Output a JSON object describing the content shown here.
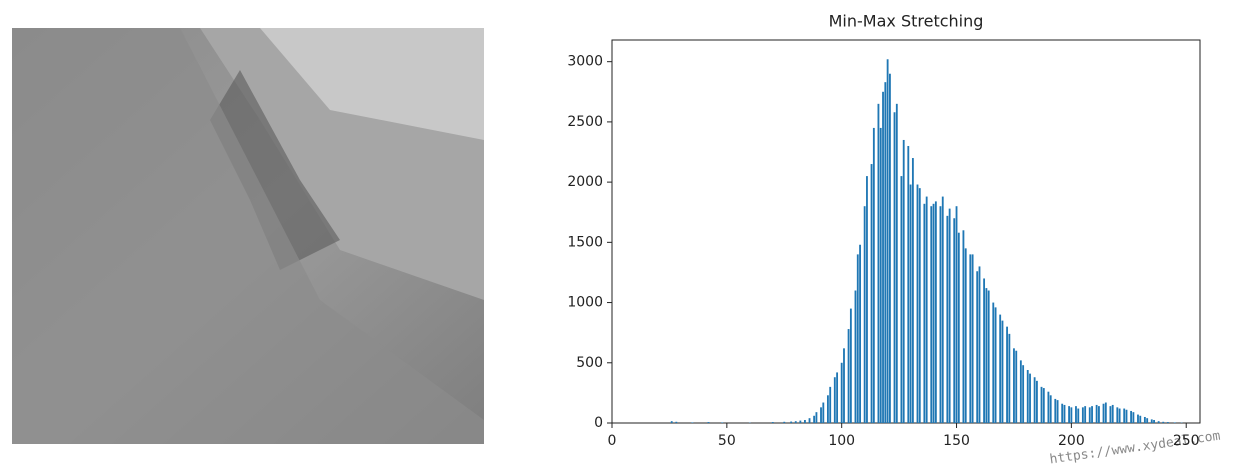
{
  "chart_data": {
    "type": "bar",
    "title": "Min-Max Stretching",
    "x": [
      26,
      28,
      35,
      42,
      48,
      60,
      70,
      75,
      78,
      80,
      82,
      84,
      86,
      88,
      89,
      91,
      92,
      94,
      95,
      97,
      98,
      100,
      101,
      103,
      104,
      106,
      107,
      108,
      110,
      111,
      113,
      114,
      116,
      117,
      118,
      119,
      120,
      121,
      123,
      124,
      126,
      127,
      129,
      130,
      131,
      133,
      134,
      136,
      137,
      139,
      140,
      141,
      143,
      144,
      146,
      147,
      149,
      150,
      151,
      153,
      154,
      156,
      157,
      159,
      160,
      162,
      163,
      164,
      166,
      167,
      169,
      170,
      172,
      173,
      175,
      176,
      178,
      179,
      181,
      182,
      184,
      185,
      187,
      188,
      190,
      191,
      193,
      194,
      196,
      197,
      199,
      200,
      202,
      203,
      205,
      206,
      208,
      209,
      211,
      212,
      214,
      215,
      217,
      218,
      220,
      221,
      223,
      224,
      226,
      227,
      229,
      230,
      232,
      233,
      235,
      236,
      238,
      240,
      242,
      245,
      248
    ],
    "values": [
      15,
      10,
      5,
      8,
      5,
      3,
      8,
      10,
      12,
      15,
      20,
      25,
      40,
      60,
      90,
      130,
      170,
      230,
      300,
      380,
      420,
      500,
      620,
      780,
      950,
      1100,
      1400,
      1480,
      1800,
      2050,
      2150,
      2450,
      2650,
      2450,
      2750,
      2830,
      3020,
      2900,
      2580,
      2650,
      2050,
      2350,
      2300,
      1980,
      2200,
      1980,
      1950,
      1820,
      1880,
      1800,
      1820,
      1840,
      1800,
      1880,
      1720,
      1780,
      1700,
      1800,
      1580,
      1600,
      1450,
      1400,
      1400,
      1260,
      1300,
      1200,
      1120,
      1100,
      1000,
      960,
      900,
      850,
      800,
      740,
      620,
      600,
      520,
      480,
      440,
      410,
      380,
      350,
      300,
      290,
      260,
      230,
      200,
      190,
      160,
      150,
      140,
      130,
      140,
      120,
      130,
      140,
      130,
      140,
      150,
      140,
      160,
      170,
      140,
      150,
      130,
      120,
      120,
      110,
      100,
      90,
      70,
      60,
      50,
      40,
      30,
      25,
      15,
      10,
      8,
      5,
      3
    ],
    "color": "#1f77b4",
    "xlim": [
      0,
      256
    ],
    "xticks": [
      0,
      50,
      100,
      150,
      200,
      250
    ],
    "ylim": [
      0,
      3180
    ],
    "yticks": [
      0,
      500,
      1000,
      1500,
      2000,
      2500,
      3000
    ],
    "watermark": "https://www.xydeal.com"
  }
}
